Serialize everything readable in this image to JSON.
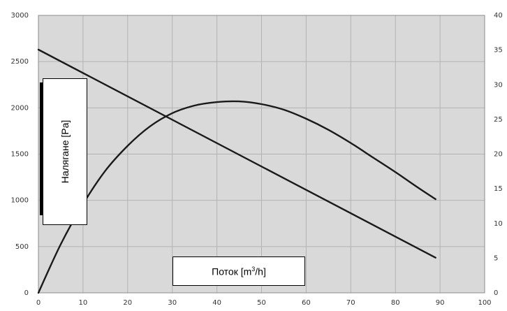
{
  "chart_data": {
    "type": "line",
    "title": "",
    "ylabel": "Налягане [Pa]",
    "xlabel_main": "Поток [m",
    "xlabel_sup": "3",
    "xlabel_tail": "/h]",
    "xlim": [
      0,
      100
    ],
    "ylim": [
      0,
      3000
    ],
    "y2lim": [
      0,
      40
    ],
    "grid": true,
    "x_ticks": [
      0,
      10,
      20,
      30,
      40,
      50,
      60,
      70,
      80,
      90,
      100
    ],
    "y_ticks": [
      0,
      500,
      1000,
      1500,
      2000,
      2500,
      3000
    ],
    "y2_ticks": [
      0,
      5,
      10,
      15,
      20,
      25,
      30,
      35,
      40
    ],
    "series": [
      {
        "axis": "left",
        "x": [
          0,
          89
        ],
        "y": [
          2630,
          380
        ]
      },
      {
        "axis": "right",
        "x": [
          0,
          5,
          10,
          15,
          20,
          25,
          30,
          35,
          40,
          45,
          50,
          55,
          60,
          65,
          70,
          75,
          80,
          85,
          89
        ],
        "y": [
          0,
          7.0,
          12.8,
          17.6,
          21.2,
          24.0,
          25.9,
          27.0,
          27.5,
          27.6,
          27.2,
          26.4,
          25.1,
          23.5,
          21.6,
          19.5,
          17.4,
          15.2,
          13.5
        ]
      }
    ],
    "colors": {
      "plot_background": "#d9d9d9",
      "grid": "#b3b3b3",
      "line": "#1a1a1a"
    }
  }
}
